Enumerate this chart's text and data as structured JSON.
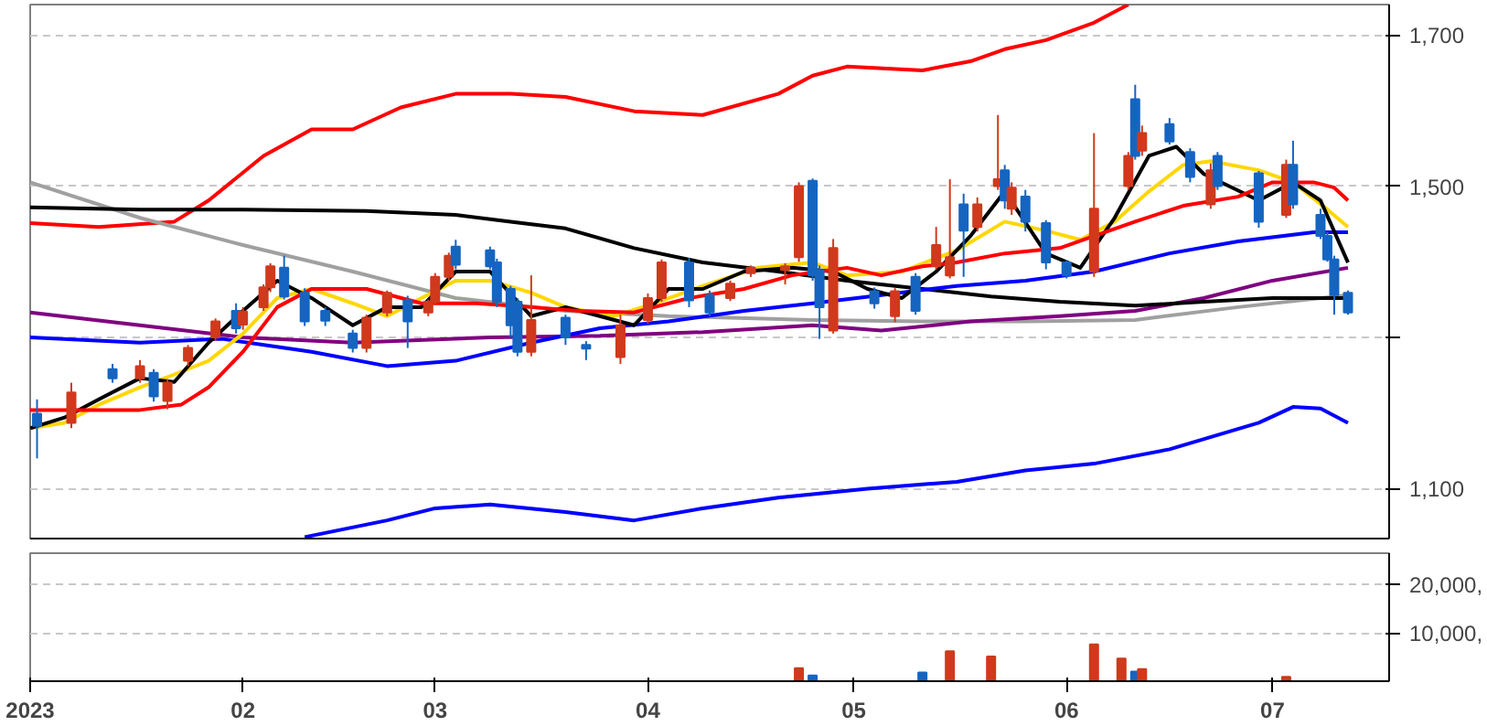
{
  "chart_data": [
    {
      "type": "candlestick",
      "xlim": [
        "2023-01-01",
        "2023-07-18"
      ],
      "ylim": [
        1034,
        1740
      ],
      "tick_labels": "y",
      "grid": true,
      "xticks": [
        "2023-01-01",
        "2023-02-01",
        "2023-03-01",
        "2023-04-01",
        "2023-05-01",
        "2023-06-01",
        "2023-07-01"
      ],
      "yticks": [
        {
          "value": 1100,
          "label": "1,100"
        },
        {
          "value": 1300,
          "label": null
        },
        {
          "value": 1500,
          "label": "1,500"
        },
        {
          "value": 1700,
          "label": "1,700"
        }
      ],
      "x": [
        "2023-01-02",
        "2023-01-07",
        "2023-01-13",
        "2023-01-17",
        "2023-01-19",
        "2023-01-21",
        "2023-01-24",
        "2023-01-28",
        "2023-01-31",
        "2023-02-01",
        "2023-02-04",
        "2023-02-05",
        "2023-02-07",
        "2023-02-10",
        "2023-02-13",
        "2023-02-17",
        "2023-02-19",
        "2023-02-22",
        "2023-02-25",
        "2023-02-28",
        "2023-03-01",
        "2023-03-03",
        "2023-03-04",
        "2023-03-09",
        "2023-03-10",
        "2023-03-12",
        "2023-03-13",
        "2023-03-15",
        "2023-03-20",
        "2023-03-23",
        "2023-03-28",
        "2023-04-01",
        "2023-04-03",
        "2023-04-07",
        "2023-04-10",
        "2023-04-13",
        "2023-04-16",
        "2023-04-21",
        "2023-04-23",
        "2023-04-25",
        "2023-04-26",
        "2023-04-28",
        "2023-05-04",
        "2023-05-07",
        "2023-05-10",
        "2023-05-13",
        "2023-05-15",
        "2023-05-17",
        "2023-05-19",
        "2023-05-22",
        "2023-05-23",
        "2023-05-24",
        "2023-05-26",
        "2023-05-29",
        "2023-06-01",
        "2023-06-05",
        "2023-06-10",
        "2023-06-11",
        "2023-06-12",
        "2023-06-16",
        "2023-06-19",
        "2023-06-22",
        "2023-06-23",
        "2023-06-29",
        "2023-07-03",
        "2023-07-04",
        "2023-07-08",
        "2023-07-09",
        "2023-07-10",
        "2023-07-12"
      ],
      "ohlc": [
        [
          1199,
          1218,
          1140,
          1183
        ],
        [
          1187,
          1240,
          1180,
          1227
        ],
        [
          1258,
          1265,
          1240,
          1246
        ],
        [
          1246,
          1270,
          1240,
          1262
        ],
        [
          1253,
          1258,
          1215,
          1222
        ],
        [
          1216,
          1245,
          1205,
          1240
        ],
        [
          1269,
          1290,
          1262,
          1286
        ],
        [
          1300,
          1325,
          1295,
          1321
        ],
        [
          1335,
          1345,
          1305,
          1312
        ],
        [
          1317,
          1340,
          1310,
          1334
        ],
        [
          1340,
          1370,
          1335,
          1366
        ],
        [
          1366,
          1398,
          1360,
          1394
        ],
        [
          1392,
          1408,
          1350,
          1354
        ],
        [
          1359,
          1365,
          1315,
          1321
        ],
        [
          1335,
          1340,
          1315,
          1322
        ],
        [
          1305,
          1310,
          1280,
          1286
        ],
        [
          1286,
          1330,
          1280,
          1326
        ],
        [
          1333,
          1362,
          1328,
          1359
        ],
        [
          1349,
          1355,
          1286,
          1321
        ],
        [
          1333,
          1350,
          1328,
          1347
        ],
        [
          1347,
          1385,
          1343,
          1380
        ],
        [
          1380,
          1412,
          1375,
          1408
        ],
        [
          1420,
          1429,
          1390,
          1396
        ],
        [
          1415,
          1420,
          1390,
          1394
        ],
        [
          1399,
          1404,
          1340,
          1347
        ],
        [
          1364,
          1368,
          1300,
          1316
        ],
        [
          1347,
          1352,
          1275,
          1281
        ],
        [
          1281,
          1382,
          1275,
          1323
        ],
        [
          1326,
          1330,
          1290,
          1300
        ],
        [
          1290,
          1295,
          1270,
          1285
        ],
        [
          1274,
          1330,
          1265,
          1316
        ],
        [
          1323,
          1358,
          1318,
          1352
        ],
        [
          1352,
          1403,
          1347,
          1399
        ],
        [
          1399,
          1405,
          1340,
          1349
        ],
        [
          1356,
          1362,
          1328,
          1333
        ],
        [
          1352,
          1375,
          1348,
          1371
        ],
        [
          1385,
          1395,
          1380,
          1392
        ],
        [
          1389,
          1398,
          1370,
          1394
        ],
        [
          1406,
          1505,
          1400,
          1500
        ],
        [
          1507,
          1510,
          1375,
          1382
        ],
        [
          1389,
          1395,
          1298,
          1340
        ],
        [
          1309,
          1430,
          1305,
          1418
        ],
        [
          1361,
          1366,
          1338,
          1345
        ],
        [
          1328,
          1365,
          1320,
          1361
        ],
        [
          1380,
          1385,
          1330,
          1335
        ],
        [
          1394,
          1446,
          1390,
          1422
        ],
        [
          1382,
          1509,
          1378,
          1406
        ],
        [
          1476,
          1490,
          1380,
          1441
        ],
        [
          1446,
          1485,
          1440,
          1476
        ],
        [
          1500,
          1594,
          1495,
          1509
        ],
        [
          1521,
          1528,
          1470,
          1481
        ],
        [
          1470,
          1505,
          1462,
          1498
        ],
        [
          1486,
          1495,
          1440,
          1453
        ],
        [
          1451,
          1455,
          1390,
          1399
        ],
        [
          1399,
          1402,
          1378,
          1382
        ],
        [
          1387,
          1570,
          1380,
          1470
        ],
        [
          1500,
          1545,
          1495,
          1540
        ],
        [
          1615,
          1634,
          1535,
          1540
        ],
        [
          1547,
          1580,
          1540,
          1570
        ],
        [
          1582,
          1590,
          1555,
          1559
        ],
        [
          1545,
          1550,
          1505,
          1512
        ],
        [
          1476,
          1530,
          1470,
          1521
        ],
        [
          1540,
          1545,
          1495,
          1500
        ],
        [
          1517,
          1520,
          1445,
          1453
        ],
        [
          1462,
          1535,
          1458,
          1528
        ],
        [
          1528,
          1560,
          1470,
          1476
        ],
        [
          1462,
          1470,
          1430,
          1434
        ],
        [
          1434,
          1440,
          1400,
          1403
        ],
        [
          1403,
          1408,
          1330,
          1356
        ],
        [
          1359,
          1362,
          1330,
          1333
        ]
      ],
      "colors": [
        "#1565c0",
        "#d0391c",
        "#1565c0",
        "#d0391c",
        "#1565c0",
        "#d0391c",
        "#d0391c",
        "#d0391c",
        "#1565c0",
        "#d0391c",
        "#d0391c",
        "#d0391c",
        "#1565c0",
        "#1565c0",
        "#1565c0",
        "#1565c0",
        "#d0391c",
        "#d0391c",
        "#1565c0",
        "#d0391c",
        "#d0391c",
        "#d0391c",
        "#1565c0",
        "#1565c0",
        "#1565c0",
        "#1565c0",
        "#1565c0",
        "#d0391c",
        "#1565c0",
        "#1565c0",
        "#d0391c",
        "#d0391c",
        "#d0391c",
        "#1565c0",
        "#1565c0",
        "#d0391c",
        "#d0391c",
        "#d0391c",
        "#d0391c",
        "#1565c0",
        "#1565c0",
        "#d0391c",
        "#1565c0",
        "#d0391c",
        "#1565c0",
        "#d0391c",
        "#d0391c",
        "#1565c0",
        "#d0391c",
        "#d0391c",
        "#1565c0",
        "#d0391c",
        "#1565c0",
        "#1565c0",
        "#1565c0",
        "#d0391c",
        "#d0391c",
        "#1565c0",
        "#d0391c",
        "#1565c0",
        "#1565c0",
        "#d0391c",
        "#1565c0",
        "#1565c0",
        "#d0391c",
        "#1565c0",
        "#1565c0",
        "#1565c0",
        "#1565c0",
        "#1565c0"
      ],
      "series": [
        {
          "type": "line",
          "color": "#ff0000",
          "x": [
            "2023-01-01",
            "2023-01-11",
            "2023-01-22",
            "2023-01-27",
            "2023-02-04",
            "2023-02-11",
            "2023-02-17",
            "2023-02-24",
            "2023-03-04",
            "2023-03-12",
            "2023-03-20",
            "2023-03-30",
            "2023-04-09",
            "2023-04-20",
            "2023-04-25",
            "2023-04-30",
            "2023-05-11",
            "2023-05-18",
            "2023-05-23",
            "2023-05-29",
            "2023-06-05",
            "2023-06-10"
          ],
          "values": [
            1451,
            1446,
            1453,
            1481,
            1540,
            1575,
            1575,
            1604,
            1622,
            1622,
            1618,
            1599,
            1594,
            1622,
            1646,
            1658,
            1653,
            1665,
            1681,
            1693,
            1716,
            1740
          ]
        },
        {
          "type": "line",
          "color": "#0000ff",
          "x": [
            "2023-02-10",
            "2023-02-22",
            "2023-03-01",
            "2023-03-09",
            "2023-03-20",
            "2023-03-30",
            "2023-04-09",
            "2023-04-20",
            "2023-05-03",
            "2023-05-16",
            "2023-05-26",
            "2023-06-05",
            "2023-06-16",
            "2023-06-29",
            "2023-07-04",
            "2023-07-08",
            "2023-07-12"
          ],
          "values": [
            1036,
            1058,
            1074,
            1079,
            1069,
            1058,
            1074,
            1088,
            1100,
            1109,
            1124,
            1133,
            1152,
            1187,
            1208,
            1206,
            1187
          ]
        },
        {
          "type": "line",
          "color": "#a0a0a0",
          "x": [
            "2023-01-01",
            "2023-01-17",
            "2023-02-01",
            "2023-02-17",
            "2023-03-04",
            "2023-03-20",
            "2023-04-04",
            "2023-04-25",
            "2023-05-11",
            "2023-05-26",
            "2023-06-11",
            "2023-06-26",
            "2023-07-12"
          ],
          "values": [
            1505,
            1458,
            1422,
            1387,
            1352,
            1335,
            1328,
            1323,
            1321,
            1321,
            1323,
            1340,
            1356
          ]
        },
        {
          "type": "line",
          "color": "#800080",
          "x": [
            "2023-01-01",
            "2023-01-17",
            "2023-02-01",
            "2023-02-17",
            "2023-03-09",
            "2023-03-25",
            "2023-04-09",
            "2023-04-25",
            "2023-05-05",
            "2023-05-18",
            "2023-05-31",
            "2023-06-11",
            "2023-06-21",
            "2023-07-01",
            "2023-07-12"
          ],
          "values": [
            1333,
            1316,
            1300,
            1293,
            1300,
            1302,
            1307,
            1316,
            1309,
            1321,
            1328,
            1335,
            1352,
            1375,
            1392
          ]
        },
        {
          "type": "line",
          "color": "#000000",
          "x": [
            "2023-01-01",
            "2023-01-17",
            "2023-02-01",
            "2023-02-19",
            "2023-03-04",
            "2023-03-12",
            "2023-03-20",
            "2023-03-30",
            "2023-04-09",
            "2023-04-20",
            "2023-04-30",
            "2023-05-11",
            "2023-05-21",
            "2023-05-31",
            "2023-06-11",
            "2023-06-21",
            "2023-07-01",
            "2023-07-12"
          ],
          "values": [
            1472,
            1469,
            1469,
            1467,
            1462,
            1453,
            1444,
            1418,
            1399,
            1387,
            1375,
            1364,
            1354,
            1347,
            1342,
            1347,
            1352,
            1352
          ]
        },
        {
          "type": "line",
          "color": "#0000ff",
          "x": [
            "2023-01-01",
            "2023-01-17",
            "2023-01-29",
            "2023-02-11",
            "2023-02-22",
            "2023-03-04",
            "2023-03-15",
            "2023-03-25",
            "2023-04-04",
            "2023-04-15",
            "2023-04-25",
            "2023-05-05",
            "2023-05-16",
            "2023-05-26",
            "2023-06-05",
            "2023-06-16",
            "2023-06-26",
            "2023-07-07",
            "2023-07-12"
          ],
          "values": [
            1300,
            1293,
            1298,
            1281,
            1262,
            1269,
            1293,
            1312,
            1321,
            1335,
            1345,
            1356,
            1368,
            1375,
            1387,
            1411,
            1427,
            1439,
            1439
          ]
        },
        {
          "type": "line",
          "color": "#ffd700",
          "x": [
            "2023-01-01",
            "2023-01-06",
            "2023-01-11",
            "2023-01-17",
            "2023-01-22",
            "2023-01-27",
            "2023-02-01",
            "2023-02-06",
            "2023-02-11",
            "2023-02-17",
            "2023-02-22",
            "2023-02-27",
            "2023-03-04",
            "2023-03-09",
            "2023-03-15",
            "2023-03-20",
            "2023-03-27",
            "2023-04-02",
            "2023-04-09",
            "2023-04-17",
            "2023-04-25",
            "2023-04-30",
            "2023-05-08",
            "2023-05-16",
            "2023-05-23",
            "2023-05-29",
            "2023-06-03",
            "2023-06-08",
            "2023-06-13",
            "2023-06-18",
            "2023-06-22",
            "2023-06-29",
            "2023-07-04",
            "2023-07-09",
            "2023-07-12"
          ],
          "values": [
            1180,
            1187,
            1211,
            1234,
            1251,
            1269,
            1305,
            1352,
            1364,
            1345,
            1328,
            1352,
            1375,
            1375,
            1359,
            1340,
            1328,
            1345,
            1368,
            1392,
            1399,
            1382,
            1387,
            1415,
            1453,
            1441,
            1429,
            1453,
            1493,
            1528,
            1533,
            1521,
            1505,
            1469,
            1446
          ]
        },
        {
          "type": "line",
          "color": "#000000",
          "x": [
            "2023-01-01",
            "2023-01-06",
            "2023-01-11",
            "2023-01-17",
            "2023-01-22",
            "2023-01-27",
            "2023-02-01",
            "2023-02-06",
            "2023-02-11",
            "2023-02-17",
            "2023-02-22",
            "2023-02-27",
            "2023-03-04",
            "2023-03-09",
            "2023-03-15",
            "2023-03-20",
            "2023-03-25",
            "2023-03-30",
            "2023-04-04",
            "2023-04-09",
            "2023-04-15",
            "2023-04-22",
            "2023-04-28",
            "2023-05-03",
            "2023-05-08",
            "2023-05-13",
            "2023-05-18",
            "2023-05-23",
            "2023-05-29",
            "2023-06-03",
            "2023-06-08",
            "2023-06-13",
            "2023-06-17",
            "2023-06-21",
            "2023-06-29",
            "2023-07-04",
            "2023-07-08",
            "2023-07-12"
          ],
          "values": [
            1180,
            1194,
            1218,
            1246,
            1241,
            1293,
            1335,
            1375,
            1352,
            1316,
            1340,
            1340,
            1387,
            1387,
            1328,
            1340,
            1328,
            1316,
            1364,
            1364,
            1387,
            1392,
            1387,
            1364,
            1352,
            1387,
            1434,
            1493,
            1411,
            1392,
            1458,
            1540,
            1552,
            1516,
            1481,
            1505,
            1481,
            1399
          ]
        },
        {
          "type": "line",
          "color": "#ff0000",
          "x": [
            "2023-01-01",
            "2023-01-09",
            "2023-01-17",
            "2023-01-23",
            "2023-01-27",
            "2023-02-01",
            "2023-02-06",
            "2023-02-11",
            "2023-02-19",
            "2023-02-27",
            "2023-03-07",
            "2023-03-15",
            "2023-03-22",
            "2023-03-30",
            "2023-04-07",
            "2023-04-15",
            "2023-04-22",
            "2023-04-30",
            "2023-05-05",
            "2023-05-11",
            "2023-05-16",
            "2023-05-23",
            "2023-05-31",
            "2023-06-05",
            "2023-06-11",
            "2023-06-18",
            "2023-06-26",
            "2023-07-01",
            "2023-07-07",
            "2023-07-10",
            "2023-07-12"
          ],
          "values": [
            1204,
            1204,
            1204,
            1211,
            1234,
            1281,
            1340,
            1364,
            1364,
            1345,
            1345,
            1340,
            1335,
            1333,
            1352,
            1364,
            1382,
            1392,
            1382,
            1394,
            1399,
            1411,
            1418,
            1434,
            1453,
            1474,
            1486,
            1505,
            1505,
            1498,
            1481
          ]
        }
      ]
    },
    {
      "type": "bar",
      "xlim": [
        "2023-01-01",
        "2023-07-18"
      ],
      "ylim": [
        0,
        26500
      ],
      "grid": true,
      "xticks": [
        {
          "value": "2023-01-01",
          "label": "2023"
        },
        {
          "value": "2023-02-01",
          "label": "02"
        },
        {
          "value": "2023-03-01",
          "label": "03"
        },
        {
          "value": "2023-04-01",
          "label": "04"
        },
        {
          "value": "2023-05-01",
          "label": "05"
        },
        {
          "value": "2023-06-01",
          "label": "06"
        },
        {
          "value": "2023-07-01",
          "label": "07"
        }
      ],
      "yticks": [
        {
          "value": 10000,
          "label": "10,000,"
        },
        {
          "value": 20000,
          "label": "20,000,"
        }
      ],
      "x": [
        "2023-04-23",
        "2023-04-25",
        "2023-05-11",
        "2023-05-15",
        "2023-05-21",
        "2023-06-05",
        "2023-06-09",
        "2023-06-11",
        "2023-06-12",
        "2023-07-03"
      ],
      "values": [
        2700,
        1200,
        1800,
        6200,
        5100,
        7600,
        4700,
        2000,
        2500,
        900
      ],
      "colors": [
        "#d0391c",
        "#1565c0",
        "#1565c0",
        "#d0391c",
        "#d0391c",
        "#d0391c",
        "#d0391c",
        "#1565c0",
        "#d0391c",
        "#d0391c"
      ]
    }
  ]
}
